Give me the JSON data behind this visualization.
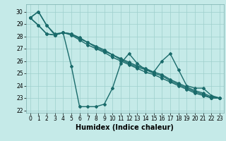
{
  "xlabel": "Humidex (Indice chaleur)",
  "background_color": "#c5eae8",
  "grid_color": "#9ecfcc",
  "line_color": "#1a6b6b",
  "xlim": [
    -0.5,
    23.5
  ],
  "ylim": [
    21.8,
    30.6
  ],
  "yticks": [
    22,
    23,
    24,
    25,
    26,
    27,
    28,
    29,
    30
  ],
  "xticks": [
    0,
    1,
    2,
    3,
    4,
    5,
    6,
    7,
    8,
    9,
    10,
    11,
    12,
    13,
    14,
    15,
    16,
    17,
    18,
    19,
    20,
    21,
    22,
    23
  ],
  "series": [
    [
      29.5,
      30.0,
      28.9,
      28.1,
      28.3,
      25.6,
      22.3,
      22.3,
      22.3,
      22.5,
      23.8,
      25.8,
      26.6,
      25.8,
      25.3,
      25.1,
      26.0,
      26.6,
      25.3,
      24.0,
      23.8,
      23.8,
      23.2,
      23.0
    ],
    [
      29.5,
      30.0,
      28.9,
      28.2,
      28.3,
      28.2,
      27.8,
      27.5,
      27.1,
      26.8,
      26.5,
      26.1,
      25.8,
      25.5,
      25.3,
      25.0,
      24.8,
      24.4,
      24.1,
      23.8,
      23.5,
      23.3,
      23.0,
      23.0
    ],
    [
      29.5,
      28.9,
      28.2,
      28.1,
      28.3,
      28.1,
      27.7,
      27.3,
      27.0,
      26.7,
      26.3,
      26.0,
      25.7,
      25.4,
      25.1,
      24.9,
      24.6,
      24.3,
      24.0,
      23.7,
      23.4,
      23.2,
      23.0,
      23.0
    ],
    [
      29.5,
      28.9,
      28.2,
      28.1,
      28.3,
      28.2,
      27.9,
      27.5,
      27.2,
      26.9,
      26.5,
      26.2,
      25.9,
      25.6,
      25.4,
      25.1,
      24.9,
      24.5,
      24.2,
      23.9,
      23.6,
      23.4,
      23.1,
      23.0
    ]
  ],
  "marker": "D",
  "marker_size": 2.0,
  "line_width": 1.0,
  "xlabel_fontsize": 7,
  "tick_fontsize": 5.5
}
